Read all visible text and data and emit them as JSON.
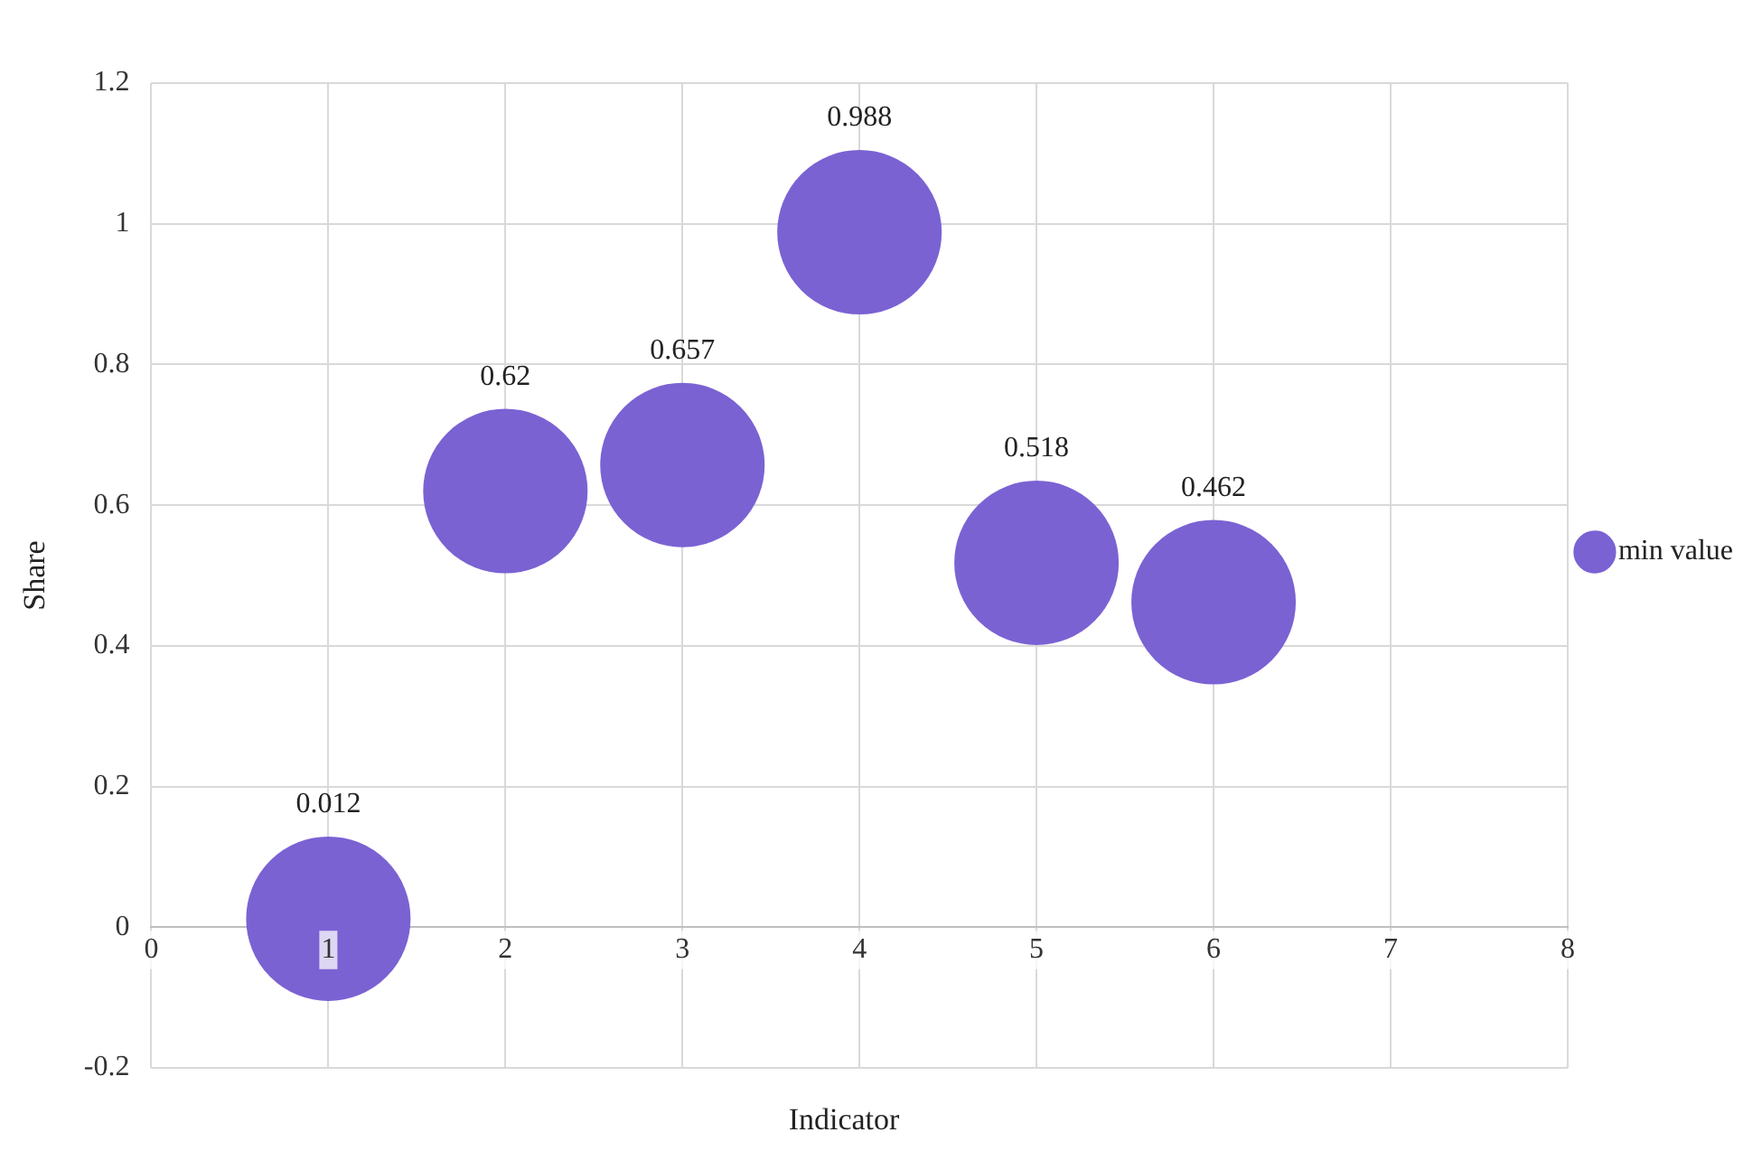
{
  "chart_data": {
    "type": "bubble",
    "xlabel": "Indicator",
    "ylabel": "Share",
    "x": [
      1,
      2,
      3,
      4,
      5,
      6
    ],
    "series": [
      {
        "name": "min value",
        "color": "#7b62d3",
        "values": [
          0.012,
          0.62,
          0.657,
          0.988,
          0.518,
          0.462
        ],
        "sizes": [
          1,
          1,
          1,
          1,
          1,
          1
        ]
      }
    ],
    "xlim": [
      0,
      8
    ],
    "xticks": [
      0,
      1,
      2,
      3,
      4,
      5,
      6,
      7,
      8
    ],
    "ylim": [
      -0.2,
      1.2
    ],
    "yticks": [
      -0.2,
      0,
      0.2,
      0.4,
      0.6,
      0.8,
      1,
      1.2
    ],
    "grid": true,
    "legend": "right",
    "data_labels": true
  }
}
